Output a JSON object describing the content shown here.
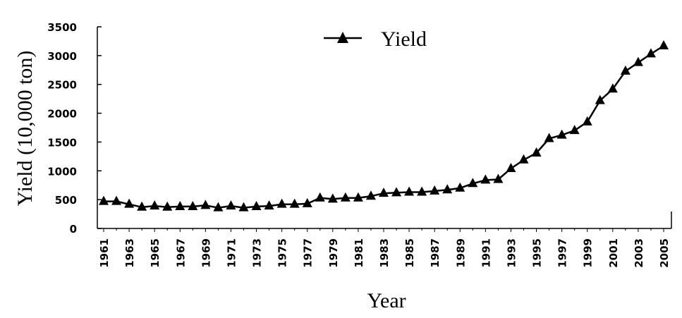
{
  "chart_data": {
    "type": "line",
    "title": "",
    "xlabel": "Year",
    "ylabel": "Yield (10,000 ton)",
    "ylim": [
      0,
      3500
    ],
    "yticks": [
      0,
      500,
      1000,
      1500,
      2000,
      2500,
      3000,
      3500
    ],
    "xlim": [
      1961,
      2005
    ],
    "xticks": [
      1961,
      1963,
      1965,
      1967,
      1969,
      1971,
      1973,
      1975,
      1977,
      1979,
      1981,
      1983,
      1985,
      1987,
      1989,
      1991,
      1993,
      1995,
      1997,
      1999,
      2001,
      2003,
      2005
    ],
    "grid": false,
    "legend_position": "top-center",
    "marker": "triangle",
    "color": "#000000",
    "series": [
      {
        "name": "Yield",
        "x": [
          1961,
          1962,
          1963,
          1964,
          1965,
          1966,
          1967,
          1968,
          1969,
          1970,
          1971,
          1972,
          1973,
          1974,
          1975,
          1976,
          1977,
          1978,
          1979,
          1980,
          1981,
          1982,
          1983,
          1984,
          1985,
          1986,
          1987,
          1988,
          1989,
          1990,
          1991,
          1992,
          1993,
          1994,
          1995,
          1996,
          1997,
          1998,
          1999,
          2000,
          2001,
          2002,
          2003,
          2004,
          2005
        ],
        "y": [
          470,
          470,
          420,
          370,
          390,
          370,
          380,
          380,
          400,
          360,
          390,
          360,
          380,
          390,
          420,
          420,
          430,
          530,
          510,
          530,
          530,
          560,
          610,
          620,
          630,
          630,
          650,
          670,
          700,
          780,
          840,
          850,
          1040,
          1190,
          1310,
          1560,
          1620,
          1700,
          1850,
          2220,
          2420,
          2730,
          2880,
          3030,
          3170
        ]
      }
    ]
  }
}
